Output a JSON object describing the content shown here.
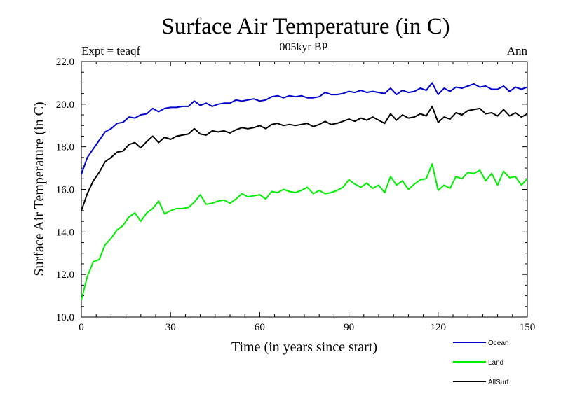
{
  "chart_data": {
    "type": "line",
    "title": "Surface Air Temperature (in C)",
    "subtitle": "005kyr BP",
    "left_note": "Expt = teaqf",
    "right_note": "Ann",
    "xlabel": "Time (in years since start)",
    "ylabel": "Surface Air Temperature (in C)",
    "xlim": [
      0,
      150
    ],
    "ylim": [
      10,
      22
    ],
    "xticks": [
      0,
      30,
      60,
      90,
      120,
      150
    ],
    "xtick_labels": [
      "0",
      "30",
      "60",
      "90",
      "120",
      "150"
    ],
    "yticks": [
      10,
      12,
      14,
      16,
      18,
      20,
      22
    ],
    "ytick_labels": [
      "10.0",
      "12.0",
      "14.0",
      "16.0",
      "18.0",
      "20.0",
      "22.0"
    ],
    "legend_position": "bottom-right",
    "x": [
      0,
      2,
      4,
      6,
      8,
      10,
      12,
      14,
      16,
      18,
      20,
      22,
      24,
      26,
      28,
      30,
      32,
      34,
      36,
      38,
      40,
      42,
      44,
      46,
      48,
      50,
      52,
      54,
      56,
      58,
      60,
      62,
      64,
      66,
      68,
      70,
      72,
      74,
      76,
      78,
      80,
      82,
      84,
      86,
      88,
      90,
      92,
      94,
      96,
      98,
      100,
      102,
      104,
      106,
      108,
      110,
      112,
      114,
      116,
      118,
      120,
      122,
      124,
      126,
      128,
      130,
      132,
      134,
      136,
      138,
      140,
      142,
      144,
      146,
      148,
      150
    ],
    "series": [
      {
        "name": "Ocean",
        "color": "#0000cc",
        "values": [
          16.7,
          17.5,
          17.9,
          18.3,
          18.7,
          18.85,
          19.1,
          19.15,
          19.4,
          19.35,
          19.5,
          19.55,
          19.8,
          19.65,
          19.8,
          19.85,
          19.85,
          19.9,
          19.9,
          20.15,
          19.95,
          20.05,
          19.9,
          20.0,
          20.05,
          20.05,
          20.2,
          20.15,
          20.2,
          20.25,
          20.15,
          20.2,
          20.35,
          20.4,
          20.3,
          20.4,
          20.35,
          20.4,
          20.3,
          20.3,
          20.35,
          20.55,
          20.45,
          20.45,
          20.5,
          20.6,
          20.55,
          20.65,
          20.55,
          20.6,
          20.55,
          20.5,
          20.75,
          20.45,
          20.65,
          20.55,
          20.6,
          20.75,
          20.65,
          21.0,
          20.45,
          20.75,
          20.6,
          20.8,
          20.75,
          20.85,
          20.95,
          20.8,
          20.85,
          20.7,
          20.7,
          20.85,
          20.6,
          20.8,
          20.7,
          20.8
        ]
      },
      {
        "name": "Land",
        "color": "#00ee00",
        "values": [
          10.8,
          11.9,
          12.6,
          12.7,
          13.4,
          13.7,
          14.1,
          14.3,
          14.7,
          14.9,
          14.5,
          14.9,
          15.1,
          15.45,
          14.85,
          15.0,
          15.1,
          15.1,
          15.15,
          15.4,
          15.75,
          15.3,
          15.35,
          15.45,
          15.5,
          15.35,
          15.55,
          15.8,
          15.65,
          15.7,
          15.75,
          15.55,
          15.9,
          15.85,
          16.0,
          15.9,
          15.85,
          15.95,
          16.1,
          15.8,
          15.95,
          15.8,
          15.85,
          15.95,
          16.1,
          16.45,
          16.25,
          16.1,
          16.3,
          16.05,
          16.2,
          15.85,
          16.6,
          16.2,
          16.4,
          16.0,
          16.25,
          16.45,
          16.5,
          17.2,
          15.95,
          16.2,
          16.05,
          16.6,
          16.5,
          16.8,
          16.75,
          16.9,
          16.4,
          16.75,
          16.2,
          16.85,
          16.55,
          16.6,
          16.2,
          16.5
        ]
      },
      {
        "name": "AllSurf",
        "color": "#000000",
        "values": [
          15.0,
          15.8,
          16.4,
          16.8,
          17.3,
          17.5,
          17.75,
          17.8,
          18.1,
          18.2,
          17.95,
          18.25,
          18.5,
          18.2,
          18.45,
          18.35,
          18.5,
          18.55,
          18.6,
          18.85,
          18.6,
          18.55,
          18.75,
          18.7,
          18.75,
          18.65,
          18.8,
          18.9,
          18.85,
          18.9,
          19.0,
          18.85,
          19.05,
          19.1,
          19.0,
          19.05,
          19.0,
          19.05,
          19.1,
          18.95,
          19.05,
          19.2,
          19.05,
          19.1,
          19.2,
          19.3,
          19.2,
          19.35,
          19.25,
          19.4,
          19.25,
          19.1,
          19.55,
          19.25,
          19.5,
          19.35,
          19.4,
          19.55,
          19.45,
          19.9,
          19.15,
          19.4,
          19.3,
          19.6,
          19.5,
          19.7,
          19.75,
          19.8,
          19.55,
          19.6,
          19.45,
          19.75,
          19.45,
          19.6,
          19.4,
          19.55
        ]
      }
    ]
  }
}
